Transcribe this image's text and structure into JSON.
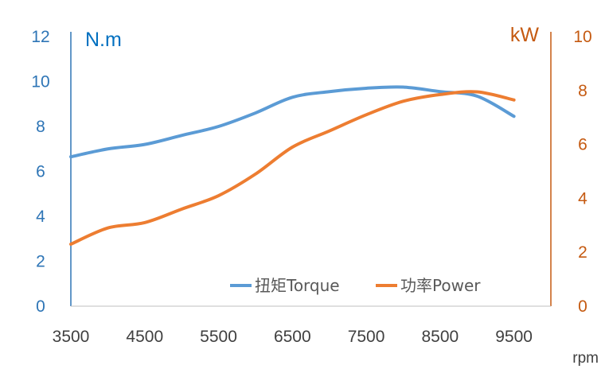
{
  "chart_data": {
    "type": "line",
    "x": [
      3500,
      4000,
      4500,
      5000,
      5500,
      6000,
      6500,
      7000,
      7500,
      8000,
      8500,
      9000,
      9500
    ],
    "xlim": [
      3500,
      10000
    ],
    "x_ticks": [
      "3500",
      "4500",
      "5500",
      "6500",
      "7500",
      "8500",
      "9500"
    ],
    "x_unit": "rpm",
    "y_left": {
      "unit": "N.m",
      "ylim": [
        0,
        12
      ],
      "ticks": [
        "0",
        "2",
        "4",
        "6",
        "8",
        "10",
        "12"
      ],
      "color": "#2e75b6"
    },
    "y_right": {
      "unit": "kW",
      "ylim": [
        0,
        10
      ],
      "ticks": [
        "0",
        "2",
        "4",
        "6",
        "8",
        "10"
      ],
      "color": "#c55a11"
    },
    "series": [
      {
        "name": "扭矩Torque",
        "axis": "left",
        "color": "#5b9bd5",
        "values": [
          6.65,
          7.0,
          7.2,
          7.6,
          8.0,
          8.6,
          9.3,
          9.55,
          9.7,
          9.75,
          9.55,
          9.35,
          8.45
        ]
      },
      {
        "name": "功率Power",
        "axis": "right",
        "color": "#ed7d31",
        "values": [
          2.3,
          2.9,
          3.1,
          3.6,
          4.1,
          4.9,
          5.9,
          6.5,
          7.1,
          7.6,
          7.85,
          7.95,
          7.65
        ]
      }
    ],
    "legend_position": "bottom-right",
    "grid": false
  }
}
